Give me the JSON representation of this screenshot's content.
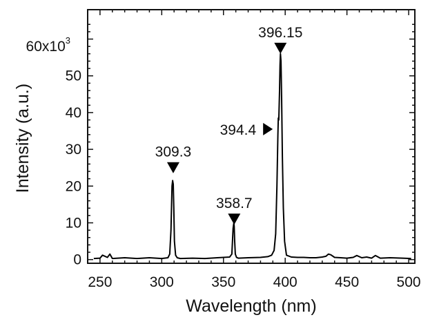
{
  "chart_data": {
    "type": "line",
    "title": "",
    "xlabel": "Wavelength (nm)",
    "ylabel": "Intensity (a.u.)",
    "xlim": [
      240,
      505
    ],
    "ylim": [
      -1000,
      68000
    ],
    "x_ticks": [
      250,
      300,
      350,
      400,
      450,
      500
    ],
    "y_ticks": [
      0,
      10000,
      20000,
      30000,
      40000,
      50000,
      60000
    ],
    "y_tick_labels": [
      "0",
      "10",
      "20",
      "30",
      "40",
      "50",
      ""
    ],
    "y_multiplier_label": {
      "base": "60x10",
      "exponent": "3"
    },
    "grid": false,
    "legend": "none",
    "line_color": "#000000",
    "series": [
      {
        "x": [
          245,
          250,
          252,
          256,
          258,
          260,
          270,
          280,
          290,
          300,
          305,
          306.5,
          307.5,
          308.3,
          308.8,
          309.3,
          309.8,
          310.3,
          311.2,
          312.5,
          315,
          325,
          335,
          345,
          350,
          355,
          356.8,
          357.8,
          358.4,
          358.7,
          359.1,
          359.6,
          360.6,
          362,
          370,
          380,
          386,
          389,
          391,
          392.3,
          393.3,
          394.1,
          394.4,
          394.8,
          395.4,
          395.8,
          396.15,
          396.6,
          397.1,
          397.7,
          398.5,
          399.5,
          401,
          405,
          410,
          415,
          420,
          425,
          430,
          433,
          435,
          437,
          440,
          445,
          450,
          455,
          458,
          462,
          466,
          470,
          473,
          477,
          485,
          495,
          502
        ],
        "y": [
          300,
          400,
          1200,
          600,
          1500,
          300,
          500,
          300,
          500,
          300,
          500,
          1500,
          8000,
          20000,
          21500,
          20500,
          14000,
          5000,
          1200,
          500,
          300,
          400,
          300,
          500,
          600,
          700,
          1500,
          8500,
          10000,
          9000,
          5000,
          1500,
          600,
          400,
          500,
          600,
          800,
          1200,
          2500,
          7000,
          20000,
          34000,
          38500,
          38000,
          46000,
          53000,
          56000,
          54000,
          44000,
          28000,
          14000,
          5000,
          1200,
          700,
          600,
          600,
          500,
          500,
          700,
          900,
          1500,
          1300,
          600,
          500,
          400,
          600,
          1100,
          500,
          700,
          400,
          1100,
          400,
          500,
          400,
          300
        ]
      }
    ],
    "annotations": [
      {
        "label": "309.3",
        "x": 309.3,
        "y": 23500,
        "marker": "triangle-down",
        "label_position": "above"
      },
      {
        "label": "358.7",
        "x": 358.7,
        "y": 9500,
        "marker": "triangle-down",
        "label_position": "above"
      },
      {
        "label": "396.15",
        "x": 396.15,
        "y": 56000,
        "marker": "triangle-down",
        "label_position": "above"
      },
      {
        "label": "394.4",
        "x": 394.4,
        "y": 35500,
        "marker": "triangle-right",
        "label_position": "left"
      }
    ]
  }
}
